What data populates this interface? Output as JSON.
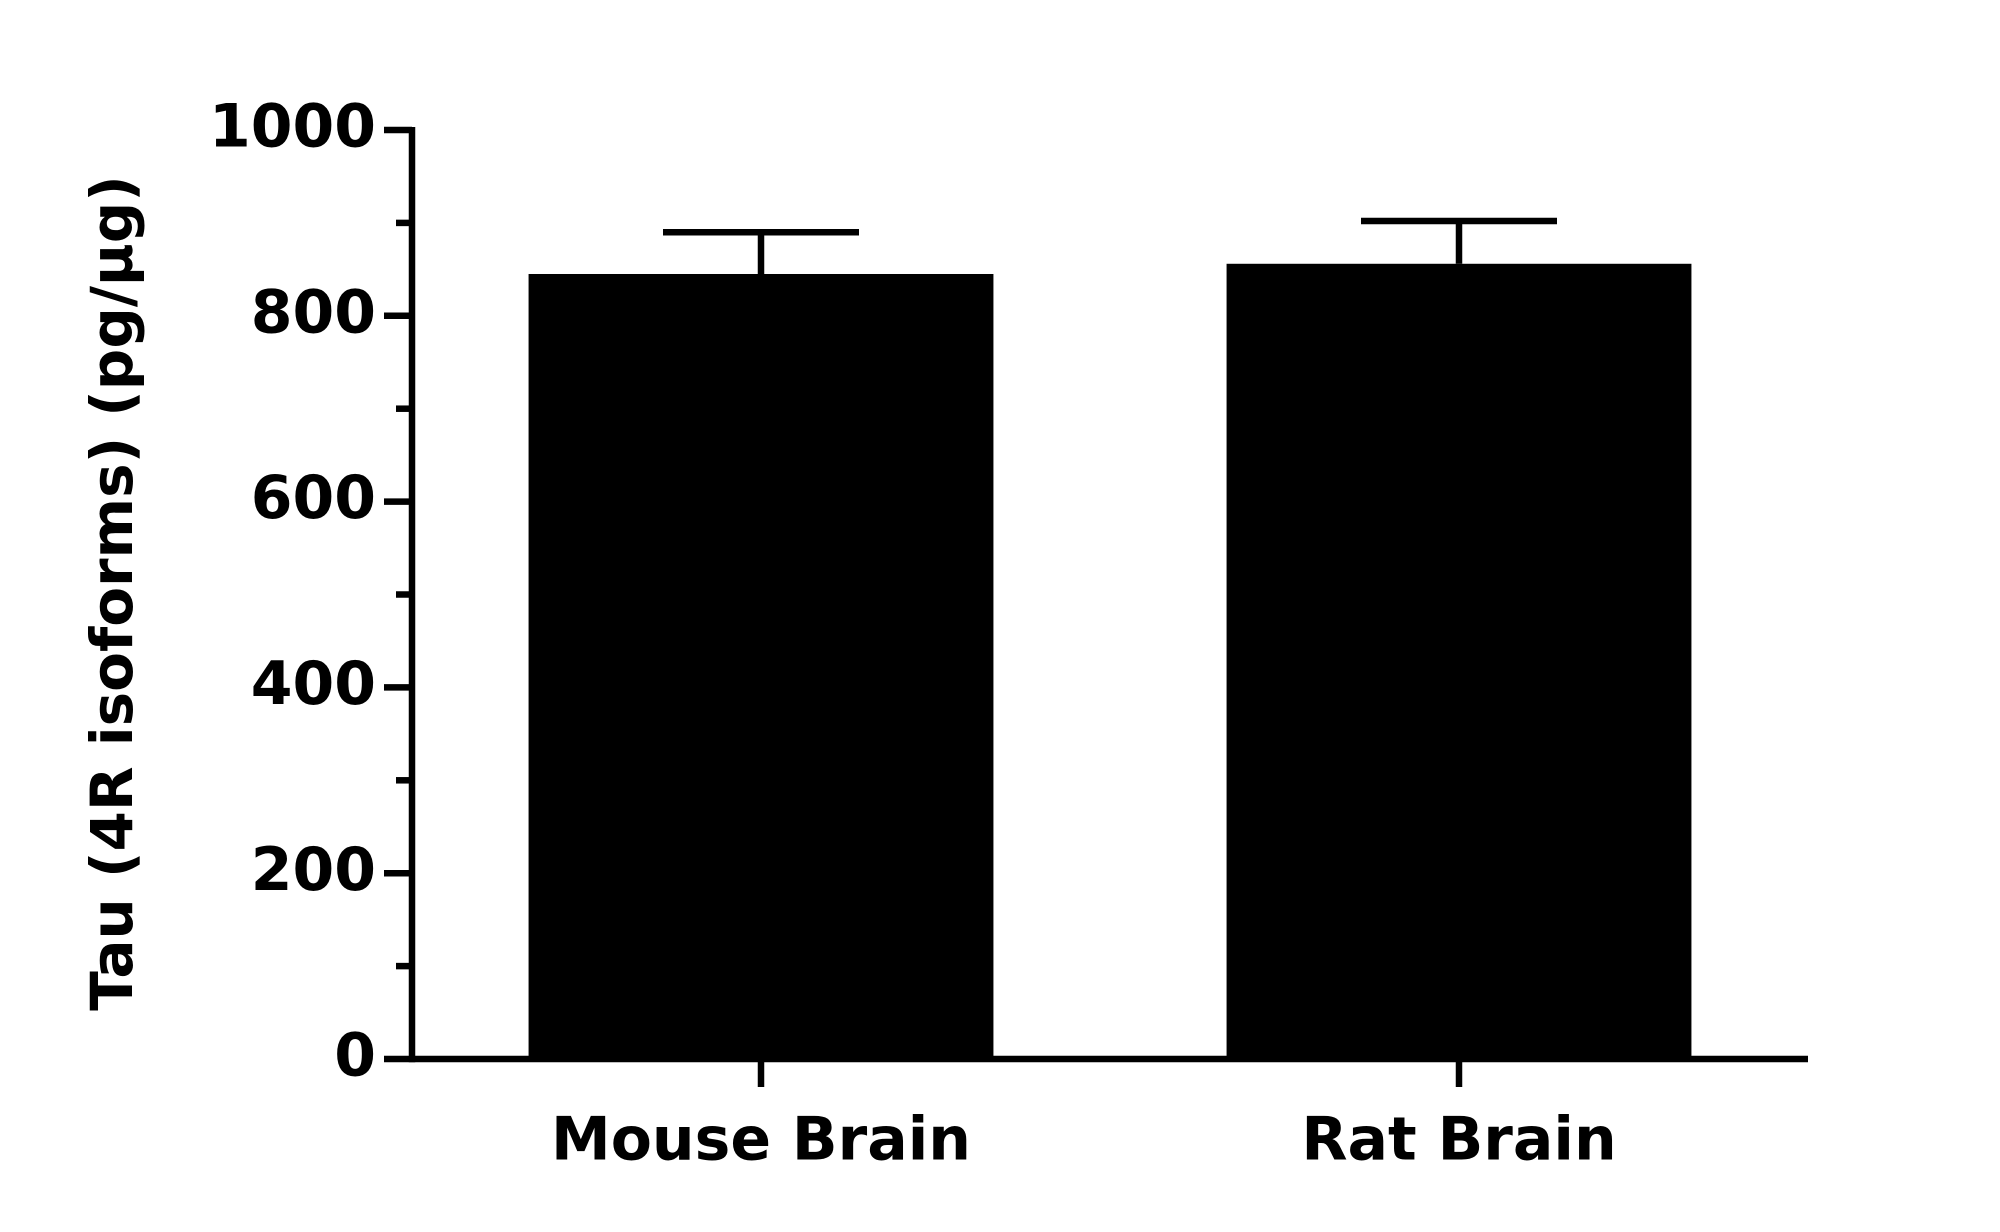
{
  "chart_data": {
    "type": "bar",
    "y_label": "Tau (4R isoforms) (pg/µg)",
    "categories": [
      "Mouse Brain",
      "Rat Brain"
    ],
    "values": [
      845,
      856
    ],
    "errors": [
      45,
      46
    ],
    "color": "#000000",
    "ylim": [
      0,
      1000
    ],
    "yticks": [
      0,
      200,
      400,
      600,
      800,
      1000
    ],
    "minor_yticks": [
      100,
      300,
      500,
      700,
      900
    ],
    "grid": false
  }
}
